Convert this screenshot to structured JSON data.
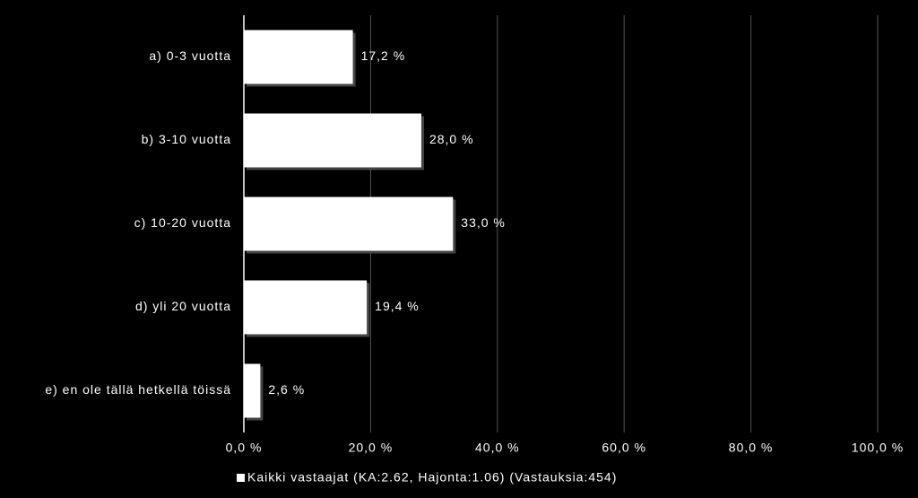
{
  "chart_data": {
    "type": "bar",
    "orientation": "horizontal",
    "categories": [
      "a) 0-3 vuotta",
      "b) 3-10 vuotta",
      "c) 10-20 vuotta",
      "d) yli 20 vuotta",
      "e) en ole tällä hetkellä töissä"
    ],
    "series": [
      {
        "name": "Kaikki vastaajat (KA:2.62, Hajonta:1.06) (Vastauksia:454)",
        "color": "#ffffff",
        "values": [
          17.2,
          28.0,
          33.0,
          19.4,
          2.6
        ],
        "value_labels": [
          "17,2 %",
          "28,0 %",
          "33,0 %",
          "19,4 %",
          "2,6 %"
        ]
      }
    ],
    "xlim": [
      0,
      100
    ],
    "xticks": [
      {
        "value": 0,
        "label": "0,0 %"
      },
      {
        "value": 20,
        "label": "20,0 %"
      },
      {
        "value": 40,
        "label": "40,0 %"
      },
      {
        "value": 60,
        "label": "60,0 %"
      },
      {
        "value": 80,
        "label": "80,0 %"
      },
      {
        "value": 100,
        "label": "100,0 %"
      }
    ],
    "grid": true
  }
}
